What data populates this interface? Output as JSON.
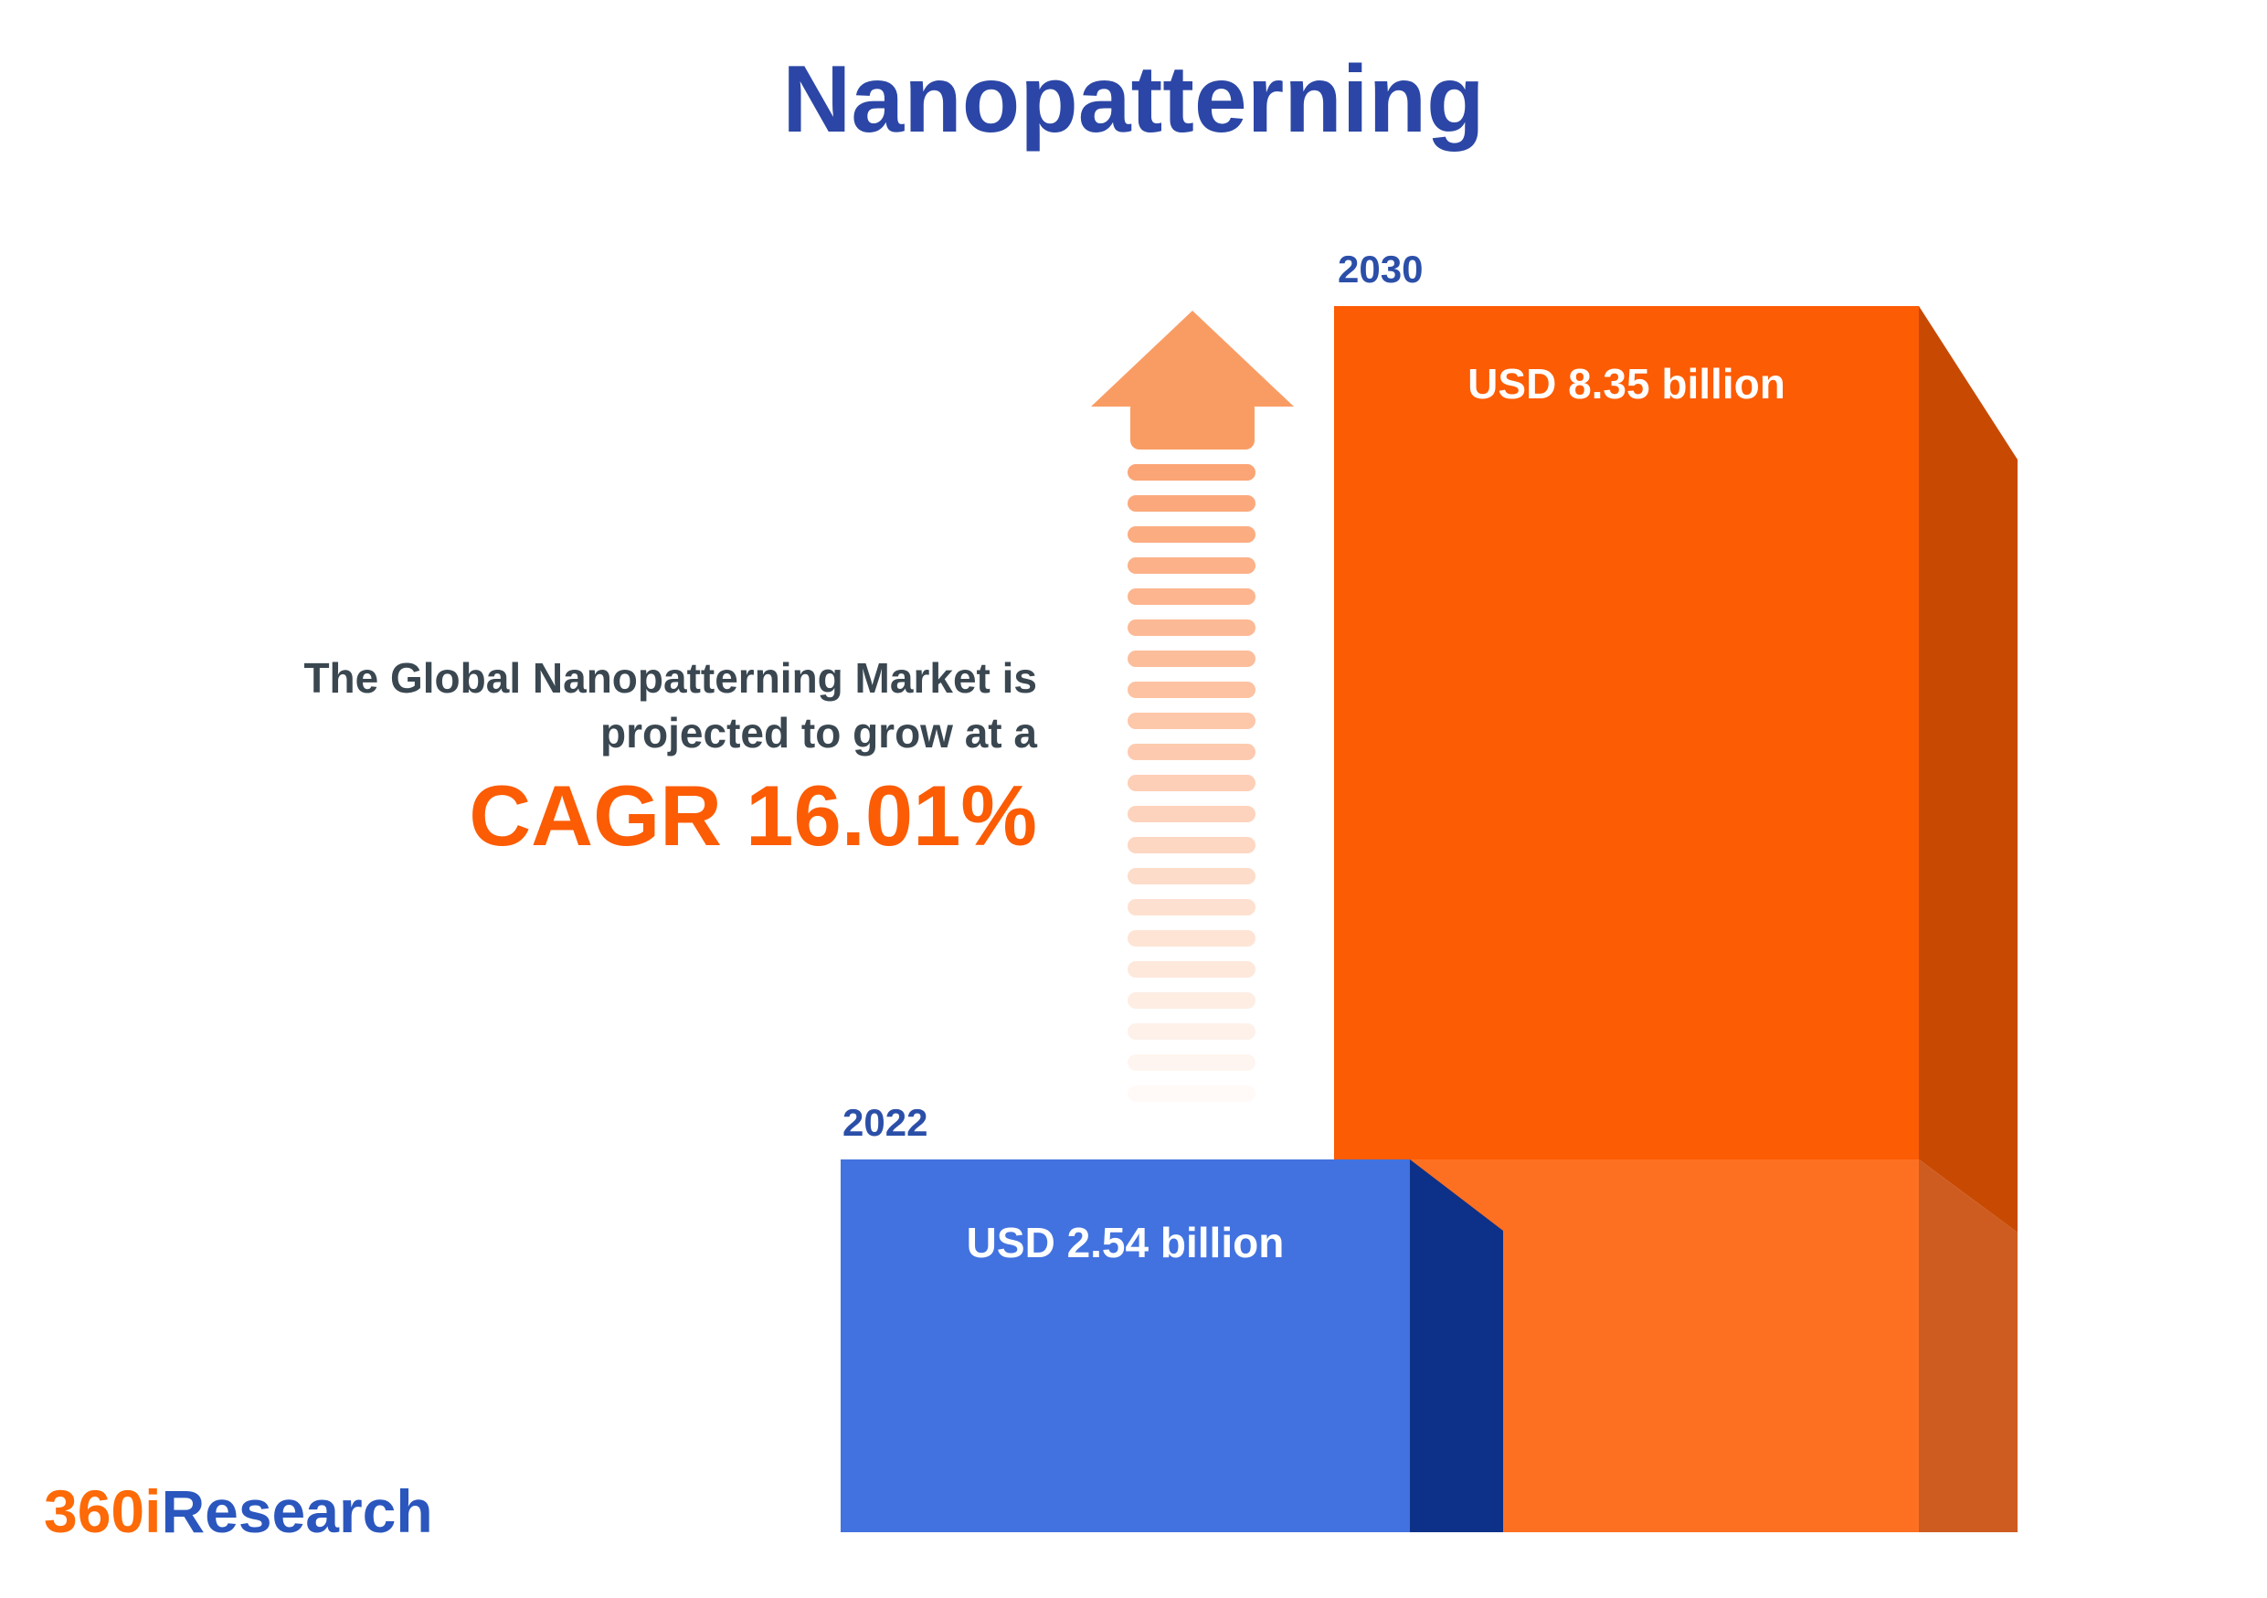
{
  "title": "Nanopatterning",
  "subtitle": {
    "line1": "The Global Nanopatterning Market is",
    "line2": "projected to grow at a",
    "cagr": "CAGR 16.01%"
  },
  "logo": {
    "prefix": "360i",
    "suffix": "Research"
  },
  "chart_data": {
    "type": "bar",
    "title": "Nanopatterning",
    "series_name": "Global Nanopatterning Market size",
    "categories": [
      "2022",
      "2030"
    ],
    "values": [
      2.54,
      8.35
    ],
    "unit": "USD billion",
    "value_labels": [
      "USD 2.54 billion",
      "USD 8.35 billion"
    ],
    "cagr_percent": 16.01,
    "ylim": [
      0,
      8.35
    ],
    "grid": false,
    "legend": false,
    "orientation": "vertical",
    "bar_style": "3d-isometric",
    "annotation": "CAGR 16.01%"
  },
  "colors": {
    "background": "#FFFFFF",
    "title": "#2B46A6",
    "subtitle_text": "#3A4750",
    "accent_orange": "#FC5C04",
    "year_label": "#2B4FA8",
    "bar_2022_front": "#4272DF",
    "bar_2022_side": "#0D3188",
    "bar_2030_front": "#FC5C04",
    "bar_2030_front_lower": "#FD7022",
    "bar_2030_side": "#C84A02",
    "bar_2030_side_lower": "#CE5C20",
    "arrow_head": "#F99C64",
    "arrow_dash": "#FBA475",
    "value_label_text": "#FFFFFF",
    "logo_prefix": "#FD6A07",
    "logo_suffix": "#2A56BE"
  }
}
